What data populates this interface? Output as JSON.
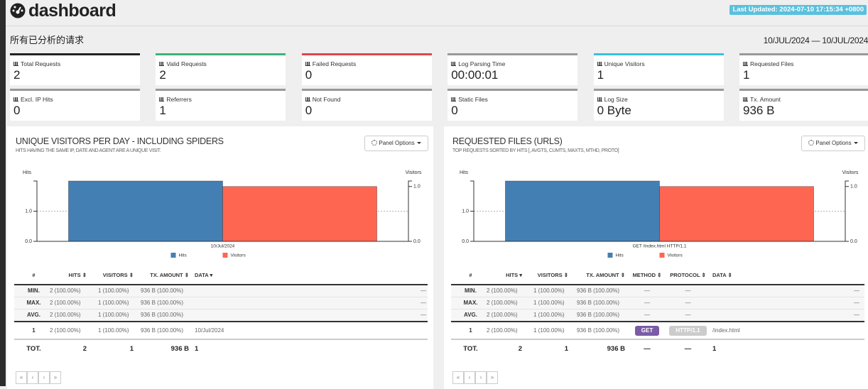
{
  "header": {
    "title": "dashboard",
    "last_updated": "Last Updated: 2024-07-10 17:15:34 +0800"
  },
  "overall": {
    "title": "所有已分析的请求",
    "date_range": "10/JUL/2024 — 10/JUL/2024",
    "metrics": [
      {
        "label": "Total Requests",
        "value": "2"
      },
      {
        "label": "Valid Requests",
        "value": "2"
      },
      {
        "label": "Failed Requests",
        "value": "0"
      },
      {
        "label": "Log Parsing Time",
        "value": "00:00:01"
      },
      {
        "label": "Unique Visitors",
        "value": "1"
      },
      {
        "label": "Requested Files",
        "value": "1"
      },
      {
        "label": "Excl. IP Hits",
        "value": "0"
      },
      {
        "label": "Referrers",
        "value": "1"
      },
      {
        "label": "Not Found",
        "value": "0"
      },
      {
        "label": "Static Files",
        "value": "0"
      },
      {
        "label": "Log Size",
        "value": "0 Byte"
      },
      {
        "label": "Tx. Amount",
        "value": "936 B"
      }
    ]
  },
  "panels": [
    {
      "title": "UNIQUE VISITORS PER DAY - INCLUDING SPIDERS",
      "subtitle": "HITS HAVING THE SAME IP, DATE AND AGENT ARE A UNIQUE VISIT.",
      "options": "Panel Options",
      "chart": {
        "type": "bar",
        "ylabel": "Hits",
        "y2label": "Visitors",
        "categories": [
          "10/Jul/2024"
        ],
        "series": [
          {
            "name": "Hits",
            "color": "#447fb3",
            "values": [
              2
            ]
          },
          {
            "name": "Visitors",
            "color": "#ff6652",
            "axis": "y2",
            "values": [
              1
            ]
          }
        ],
        "ylim": [
          0,
          2
        ],
        "yticks": [
          {
            "value": 0,
            "label": "0.0"
          },
          {
            "value": 1,
            "label": "1.0"
          }
        ],
        "y2lim": [
          0,
          1.1
        ],
        "y2ticks": [
          {
            "value": 0,
            "label": "0.0"
          },
          {
            "value": 1,
            "label": "1.0"
          }
        ],
        "grid": true
      },
      "table": {
        "columns": [
          "#",
          "HITS ⇕",
          "VISITORS ⇕",
          "TX. AMOUNT ⇕",
          "DATA ▾"
        ],
        "stats": [
          [
            "MIN.",
            "2 (100.00%)",
            "1 (100.00%)",
            "936 B (100.00%)",
            "—"
          ],
          [
            "MAX.",
            "2 (100.00%)",
            "1 (100.00%)",
            "936 B (100.00%)",
            "—"
          ],
          [
            "AVG.",
            "2 (100.00%)",
            "1 (100.00%)",
            "936 B (100.00%)",
            "—"
          ]
        ],
        "rows": [
          [
            "1",
            "2 (100.00%)",
            "1 (100.00%)",
            "936 B (100.00%)",
            "10/Jul/2024"
          ]
        ],
        "total": [
          "TOT.",
          "2",
          "1",
          "936 B",
          "1"
        ]
      },
      "pagination": [
        "«",
        "‹",
        "›",
        "»"
      ]
    },
    {
      "title": "REQUESTED FILES (URLS)",
      "subtitle": "TOP REQUESTS SORTED BY HITS [, AVGTS, CUMTS, MAXTS, MTHD, PROTO]",
      "options": "Panel Options",
      "chart": {
        "type": "bar",
        "ylabel": "Hits",
        "y2label": "Visitors",
        "categories": [
          "GET /index.html HTTP/1.1"
        ],
        "series": [
          {
            "name": "Hits",
            "color": "#447fb3",
            "values": [
              2
            ]
          },
          {
            "name": "Visitors",
            "color": "#ff6652",
            "axis": "y2",
            "values": [
              1
            ]
          }
        ],
        "ylim": [
          0,
          2
        ],
        "yticks": [
          {
            "value": 0,
            "label": "0.0"
          },
          {
            "value": 1,
            "label": "1.0"
          }
        ],
        "y2lim": [
          0,
          1.1
        ],
        "y2ticks": [
          {
            "value": 0,
            "label": "0.0"
          },
          {
            "value": 1,
            "label": "1.0"
          }
        ],
        "grid": true
      },
      "table": {
        "columns": [
          "#",
          "HITS ▾",
          "VISITORS ⇕",
          "TX. AMOUNT ⇕",
          "METHOD ⇕",
          "PROTOCOL ⇕",
          "DATA ⇕"
        ],
        "stats": [
          [
            "MIN.",
            "2 (100.00%)",
            "1 (100.00%)",
            "936 B (100.00%)",
            "—",
            "—",
            "—"
          ],
          [
            "MAX.",
            "2 (100.00%)",
            "1 (100.00%)",
            "936 B (100.00%)",
            "—",
            "—",
            "—"
          ],
          [
            "AVG.",
            "2 (100.00%)",
            "1 (100.00%)",
            "936 B (100.00%)",
            "—",
            "—",
            "—"
          ]
        ],
        "rows": [
          [
            "1",
            "2 (100.00%)",
            "1 (100.00%)",
            "936 B (100.00%)",
            "GET",
            "HTTP/1.1",
            "/index.html"
          ]
        ],
        "total": [
          "TOT.",
          "2",
          "1",
          "936 B",
          "—",
          "—",
          "1"
        ]
      },
      "pagination": [
        "«",
        "‹",
        "›",
        "»"
      ]
    }
  ]
}
